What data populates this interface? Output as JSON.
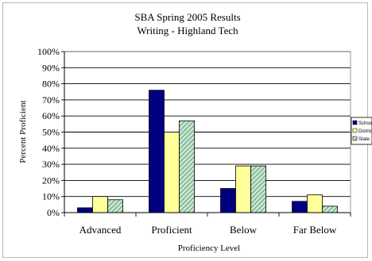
{
  "chart_data": {
    "type": "bar",
    "title": "SBA Spring 2005 Results",
    "subtitle": "Writing - Highland Tech",
    "xlabel": "Proficiency Level",
    "ylabel": "Percent Proficient",
    "ylim": [
      0,
      100
    ],
    "yticks": [
      "0%",
      "10%",
      "20%",
      "30%",
      "40%",
      "50%",
      "60%",
      "70%",
      "80%",
      "90%",
      "100%"
    ],
    "categories": [
      "Advanced",
      "Proficient",
      "Below",
      "Far Below"
    ],
    "series": [
      {
        "name": "School",
        "values": [
          3,
          76,
          15,
          7
        ],
        "color": "#000080",
        "pattern": "solid"
      },
      {
        "name": "District",
        "values": [
          10,
          50,
          29,
          11
        ],
        "color": "#ffff99",
        "pattern": "solid"
      },
      {
        "name": "State",
        "values": [
          8,
          57,
          29,
          4
        ],
        "color": "#99ccaa",
        "pattern": "hatch"
      }
    ],
    "grid": true,
    "legend": "right"
  }
}
